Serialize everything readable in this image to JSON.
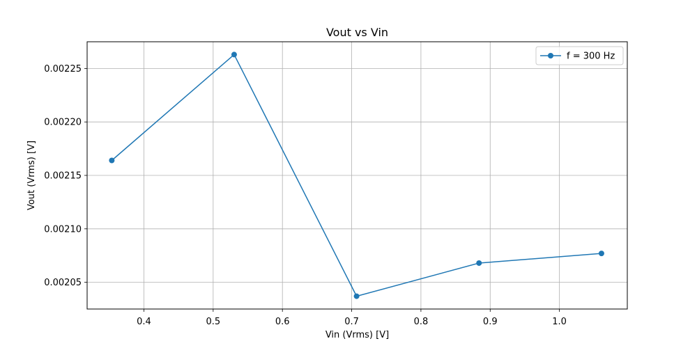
{
  "chart_data": {
    "type": "line",
    "title": "Vout vs Vin",
    "xlabel": "Vin (Vrms) [V]",
    "ylabel": "Vout (Vrms) [V]",
    "xlim": [
      0.318,
      1.098
    ],
    "ylim": [
      0.002025,
      0.002275
    ],
    "xticks": [
      0.4,
      0.5,
      0.6,
      0.7,
      0.8,
      0.9,
      1.0
    ],
    "xtick_labels": [
      "0.4",
      "0.5",
      "0.6",
      "0.7",
      "0.8",
      "0.9",
      "1.0"
    ],
    "yticks": [
      0.00205,
      0.0021,
      0.00215,
      0.0022,
      0.00225
    ],
    "ytick_labels": [
      "0.00205",
      "0.00210",
      "0.00215",
      "0.00220",
      "0.00225"
    ],
    "grid": true,
    "legend_position": "top-right",
    "series": [
      {
        "name": "f = 300 Hz",
        "color": "#1f77b4",
        "marker": "circle",
        "x": [
          0.3536,
          0.5303,
          0.7071,
          0.8839,
          1.0607
        ],
        "y": [
          0.002164,
          0.002263,
          0.002037,
          0.002068,
          0.002077
        ]
      }
    ]
  }
}
